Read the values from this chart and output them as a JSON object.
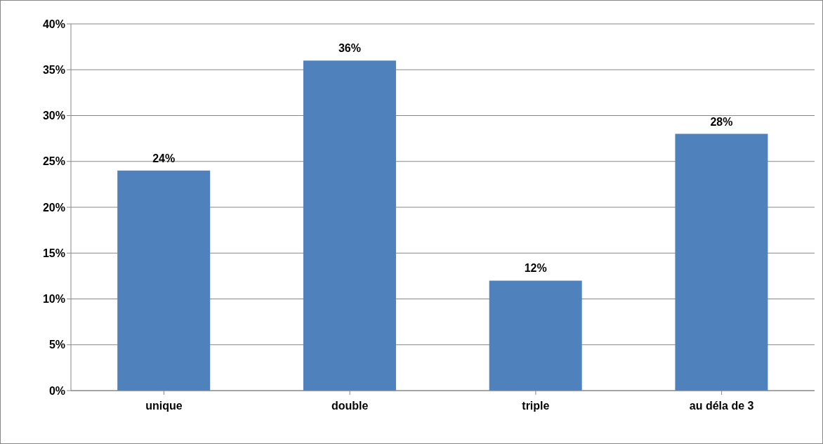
{
  "chart_data": {
    "type": "bar",
    "categories": [
      "unique",
      "double",
      "triple",
      "au déla de 3"
    ],
    "values": [
      24,
      36,
      12,
      28
    ],
    "color": "#4f81bd",
    "value_labels": [
      "24%",
      "36%",
      "12%",
      "28%"
    ],
    "ylim": [
      0,
      40
    ],
    "yticks": [
      {
        "value": 0,
        "label": "0%"
      },
      {
        "value": 5,
        "label": "5%"
      },
      {
        "value": 10,
        "label": "10%"
      },
      {
        "value": 15,
        "label": "15%"
      },
      {
        "value": 20,
        "label": "20%"
      },
      {
        "value": 25,
        "label": "25%"
      },
      {
        "value": 30,
        "label": "30%"
      },
      {
        "value": 35,
        "label": "35%"
      },
      {
        "value": 40,
        "label": "40%"
      }
    ],
    "grid": "y",
    "legend": false
  }
}
